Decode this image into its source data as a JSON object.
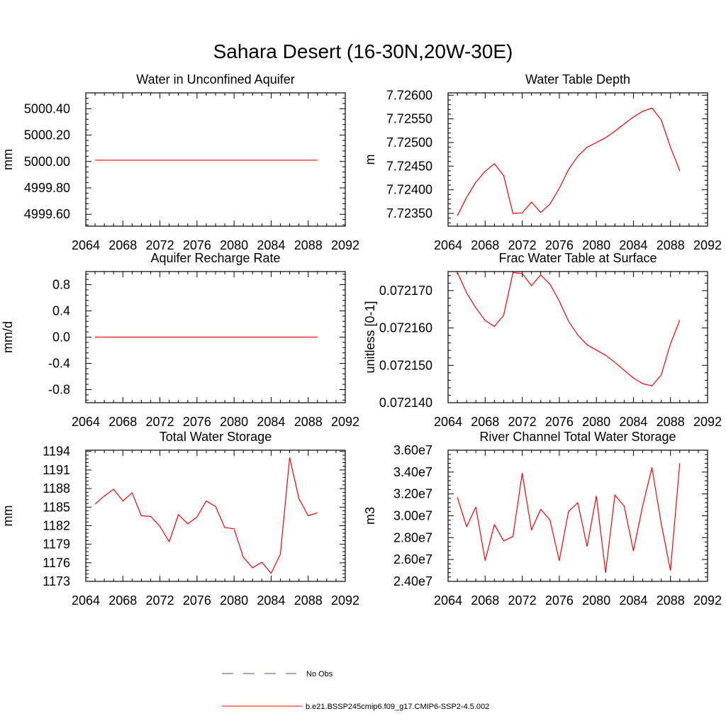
{
  "figure": {
    "title": "Sahara Desert (16-30N,20W-30E)",
    "line_color": "#ff0000",
    "obs_color": "#4d4d9a",
    "legend": [
      {
        "label": "No Obs",
        "style": "dashed",
        "color": "#4d4d9a"
      },
      {
        "label": "b.e21.BSSP245cmip6.f09_g17.CMIP6-SSP2-4.5.002",
        "style": "solid",
        "color": "#ff0000"
      }
    ]
  },
  "chart_data": [
    {
      "type": "line",
      "title": "Water in Unconfined Aquifer",
      "ylabel": "mm",
      "xlim": [
        2064,
        2092
      ],
      "ylim": [
        4999.51,
        5000.52
      ],
      "xticks": [
        2064,
        2068,
        2072,
        2076,
        2080,
        2084,
        2088,
        2092
      ],
      "xtick_labels": [
        "2064",
        "2068",
        "2072",
        "2076",
        "2080",
        "2084",
        "2088",
        "2092"
      ],
      "yticks": [
        4999.6,
        4999.8,
        5000.0,
        5000.2,
        5000.4
      ],
      "ytick_labels": [
        "4999.60",
        "4999.80",
        "5000.00",
        "5000.20",
        "5000.40"
      ],
      "x": [
        2065,
        2066,
        2067,
        2068,
        2069,
        2070,
        2071,
        2072,
        2073,
        2074,
        2075,
        2076,
        2077,
        2078,
        2079,
        2080,
        2081,
        2082,
        2083,
        2084,
        2085,
        2086,
        2087,
        2088,
        2089
      ],
      "series": [
        {
          "values": [
            5000.01,
            5000.01,
            5000.01,
            5000.01,
            5000.01,
            5000.01,
            5000.01,
            5000.01,
            5000.01,
            5000.01,
            5000.01,
            5000.01,
            5000.01,
            5000.01,
            5000.01,
            5000.01,
            5000.01,
            5000.01,
            5000.01,
            5000.01,
            5000.01,
            5000.01,
            5000.01,
            5000.01,
            5000.01
          ]
        }
      ]
    },
    {
      "type": "line",
      "title": "Water Table Depth",
      "ylabel": "m",
      "xlim": [
        2064,
        2092
      ],
      "ylim": [
        7.72323,
        7.72605
      ],
      "xticks": [
        2064,
        2068,
        2072,
        2076,
        2080,
        2084,
        2088,
        2092
      ],
      "xtick_labels": [
        "2064",
        "2068",
        "2072",
        "2076",
        "2080",
        "2084",
        "2088",
        "2092"
      ],
      "yticks": [
        7.7235,
        7.724,
        7.7245,
        7.725,
        7.7255,
        7.726
      ],
      "ytick_labels": [
        "7.72350",
        "7.72400",
        "7.72450",
        "7.72500",
        "7.72550",
        "7.72600"
      ],
      "x": [
        2065,
        2066,
        2067,
        2068,
        2069,
        2070,
        2071,
        2072,
        2073,
        2074,
        2075,
        2076,
        2077,
        2078,
        2079,
        2080,
        2081,
        2082,
        2083,
        2084,
        2085,
        2086,
        2087,
        2088,
        2089
      ],
      "series": [
        {
          "values": [
            7.72345,
            7.72384,
            7.72416,
            7.72439,
            7.72455,
            7.7243,
            7.7235,
            7.72351,
            7.72374,
            7.72352,
            7.7237,
            7.72403,
            7.72443,
            7.72471,
            7.7249,
            7.725,
            7.7251,
            7.72524,
            7.72539,
            7.72554,
            7.72566,
            7.72573,
            7.72548,
            7.7249,
            7.7244
          ]
        }
      ]
    },
    {
      "type": "line",
      "title": "Aquifer Recharge Rate",
      "ylabel": "mm/d",
      "xlim": [
        2064,
        2092
      ],
      "ylim": [
        -1.0,
        1.0
      ],
      "xticks": [
        2064,
        2068,
        2072,
        2076,
        2080,
        2084,
        2088,
        2092
      ],
      "xtick_labels": [
        "2064",
        "2068",
        "2072",
        "2076",
        "2080",
        "2084",
        "2088",
        "2092"
      ],
      "yticks": [
        -0.8,
        -0.4,
        0.0,
        0.4,
        0.8
      ],
      "ytick_labels": [
        "-0.8",
        "-0.4",
        "0.0",
        "0.4",
        "0.8"
      ],
      "x": [
        2065,
        2066,
        2067,
        2068,
        2069,
        2070,
        2071,
        2072,
        2073,
        2074,
        2075,
        2076,
        2077,
        2078,
        2079,
        2080,
        2081,
        2082,
        2083,
        2084,
        2085,
        2086,
        2087,
        2088,
        2089
      ],
      "series": [
        {
          "values": [
            0,
            0,
            0,
            0,
            0,
            0,
            0,
            0,
            0,
            0,
            0,
            0,
            0,
            0,
            0,
            0,
            0,
            0,
            0,
            0,
            0,
            0,
            0,
            0,
            0
          ]
        }
      ]
    },
    {
      "type": "line",
      "title": "Frac Water Table at Surface",
      "ylabel": "unitless [0-1]",
      "xlim": [
        2064,
        2092
      ],
      "ylim": [
        0.07214,
        0.0721751
      ],
      "xticks": [
        2064,
        2068,
        2072,
        2076,
        2080,
        2084,
        2088,
        2092
      ],
      "xtick_labels": [
        "2064",
        "2068",
        "2072",
        "2076",
        "2080",
        "2084",
        "2088",
        "2092"
      ],
      "yticks": [
        0.07214,
        0.07215,
        0.07216,
        0.07217
      ],
      "ytick_labels": [
        "0.072140",
        "0.072150",
        "0.072160",
        "0.072170"
      ],
      "x": [
        2065,
        2066,
        2067,
        2068,
        2069,
        2070,
        2071,
        2072,
        2073,
        2074,
        2075,
        2076,
        2077,
        2078,
        2079,
        2080,
        2081,
        2082,
        2083,
        2084,
        2085,
        2086,
        2087,
        2088,
        2089
      ],
      "series": [
        {
          "values": [
            0.0721749,
            0.0721694,
            0.0721654,
            0.072162,
            0.0721604,
            0.0721634,
            0.0721748,
            0.0721746,
            0.0721713,
            0.0721742,
            0.0721717,
            0.0721672,
            0.0721618,
            0.0721581,
            0.0721555,
            0.0721541,
            0.0721527,
            0.0721508,
            0.0721487,
            0.0721466,
            0.0721451,
            0.0721445,
            0.0721474,
            0.0721557,
            0.0721621
          ]
        }
      ]
    },
    {
      "type": "line",
      "title": "Total Water Storage",
      "ylabel": "mm",
      "xlim": [
        2064,
        2092
      ],
      "ylim": [
        1173,
        1194.2
      ],
      "xticks": [
        2064,
        2068,
        2072,
        2076,
        2080,
        2084,
        2088,
        2092
      ],
      "xtick_labels": [
        "2064",
        "2068",
        "2072",
        "2076",
        "2080",
        "2084",
        "2088",
        "2092"
      ],
      "yticks": [
        1173,
        1176,
        1179,
        1182,
        1185,
        1188,
        1191,
        1194
      ],
      "ytick_labels": [
        "1173",
        "1176",
        "1179",
        "1182",
        "1185",
        "1188",
        "1191",
        "1194"
      ],
      "x": [
        2065,
        2066,
        2067,
        2068,
        2069,
        2070,
        2071,
        2072,
        2073,
        2074,
        2075,
        2076,
        2077,
        2078,
        2079,
        2080,
        2081,
        2082,
        2083,
        2084,
        2085,
        2086,
        2087,
        2088,
        2089
      ],
      "series": [
        {
          "values": [
            1185.5,
            1186.8,
            1187.9,
            1186.0,
            1187.3,
            1183.6,
            1183.5,
            1181.9,
            1179.4,
            1183.8,
            1182.3,
            1183.4,
            1186.0,
            1185.1,
            1181.7,
            1181.5,
            1176.9,
            1175.2,
            1176.1,
            1174.3,
            1177.4,
            1193.0,
            1186.4,
            1183.6,
            1184.1
          ]
        }
      ]
    },
    {
      "type": "line",
      "title": "River Channel Total Water Storage",
      "ylabel": "m3",
      "xlim": [
        2064,
        2092
      ],
      "ylim": [
        24000000,
        36000000
      ],
      "xticks": [
        2064,
        2068,
        2072,
        2076,
        2080,
        2084,
        2088,
        2092
      ],
      "xtick_labels": [
        "2064",
        "2068",
        "2072",
        "2076",
        "2080",
        "2084",
        "2088",
        "2092"
      ],
      "yticks": [
        24000000,
        26000000,
        28000000,
        30000000,
        32000000,
        34000000,
        36000000
      ],
      "ytick_labels": [
        "2.40e7",
        "2.60e7",
        "2.80e7",
        "3.00e7",
        "3.20e7",
        "3.40e7",
        "3.60e7"
      ],
      "x": [
        2065,
        2066,
        2067,
        2068,
        2069,
        2070,
        2071,
        2072,
        2073,
        2074,
        2075,
        2076,
        2077,
        2078,
        2079,
        2080,
        2081,
        2082,
        2083,
        2084,
        2085,
        2086,
        2087,
        2088,
        2089
      ],
      "series": [
        {
          "values": [
            31700000,
            29000000,
            30800000,
            25900000,
            29200000,
            27700000,
            28100000,
            33900000,
            28700000,
            30600000,
            29600000,
            25900000,
            30400000,
            31200000,
            27200000,
            31800000,
            24800000,
            31900000,
            30900000,
            26800000,
            30900000,
            34400000,
            29300000,
            25000000,
            34800000
          ]
        }
      ]
    }
  ]
}
